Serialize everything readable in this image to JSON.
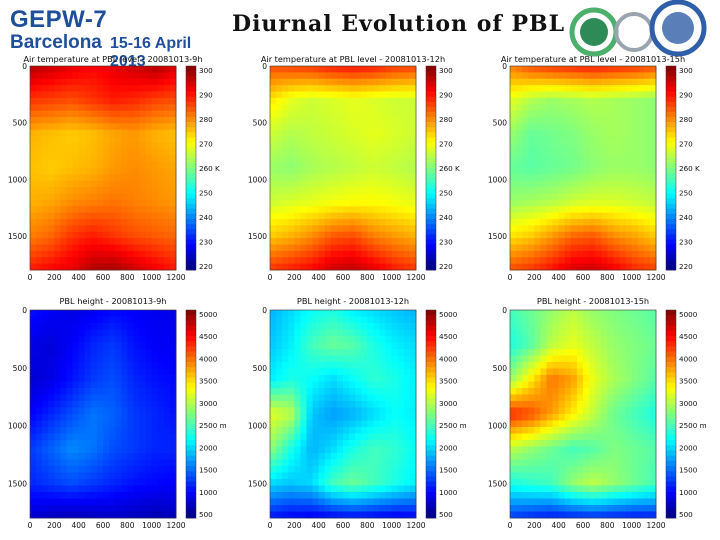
{
  "header": {
    "logo_line1": "GEPW-7",
    "logo_line2": "Barcelona",
    "logo_line3": "15-16 April 2013",
    "slide_title": "Diurnal Evolution of PBL"
  },
  "colors": {
    "logo_blue": "#1f4f9a",
    "ring_green": "#4caf6a",
    "ring_blue": "#2f5fa8",
    "ring_gray": "#9aa4b0"
  },
  "chart_data": [
    {
      "type": "heatmap",
      "title": "Air temperature at PBL level - 20081013-9h",
      "x_ticks": [
        "0",
        "200",
        "400",
        "600",
        "800",
        "1000",
        "1200"
      ],
      "y_ticks": [
        "0",
        "500",
        "1000",
        "1500"
      ],
      "xlim": [
        0,
        1200
      ],
      "ylim": [
        0,
        1800
      ],
      "colorbar_ticks": [
        "300",
        "290",
        "280",
        "270",
        "260 K",
        "250",
        "240",
        "230",
        "220"
      ],
      "colorbar_range": [
        220,
        300
      ],
      "colormap": "jet",
      "field": [
        [
          296,
          294,
          292,
          290,
          292,
          294,
          296,
          293
        ],
        [
          286,
          285,
          284,
          286,
          288,
          287,
          285,
          284
        ],
        [
          276,
          275,
          274,
          275,
          277,
          278,
          276,
          275
        ],
        [
          275,
          274,
          275,
          276,
          278,
          279,
          278,
          277
        ],
        [
          276,
          277,
          279,
          280,
          281,
          280,
          279,
          278
        ],
        [
          280,
          282,
          286,
          288,
          286,
          284,
          283,
          282
        ],
        [
          288,
          290,
          292,
          296,
          297,
          294,
          291,
          288
        ]
      ]
    },
    {
      "type": "heatmap",
      "title": "Air temperature at PBL level - 20081013-12h",
      "x_ticks": [
        "0",
        "200",
        "400",
        "600",
        "800",
        "1000",
        "1200"
      ],
      "y_ticks": [
        "0",
        "500",
        "1000",
        "1500"
      ],
      "xlim": [
        0,
        1200
      ],
      "ylim": [
        0,
        1800
      ],
      "colorbar_ticks": [
        "300",
        "290",
        "280",
        "270",
        "260 K",
        "250",
        "240",
        "230",
        "220"
      ],
      "colorbar_range": [
        220,
        300
      ],
      "colormap": "jet",
      "field": [
        [
          284,
          285,
          286,
          288,
          289,
          288,
          286,
          285
        ],
        [
          272,
          268,
          266,
          267,
          268,
          267,
          266,
          266
        ],
        [
          266,
          264,
          265,
          266,
          267,
          268,
          267,
          266
        ],
        [
          262,
          261,
          263,
          264,
          265,
          266,
          265,
          264
        ],
        [
          266,
          267,
          268,
          269,
          270,
          270,
          269,
          268
        ],
        [
          274,
          276,
          279,
          283,
          284,
          280,
          278,
          276
        ],
        [
          286,
          288,
          290,
          294,
          295,
          292,
          288,
          286
        ]
      ]
    },
    {
      "type": "heatmap",
      "title": "Air temperature at PBL level - 20081013-15h",
      "x_ticks": [
        "0",
        "200",
        "400",
        "600",
        "800",
        "1000",
        "1200"
      ],
      "y_ticks": [
        "0",
        "500",
        "1000",
        "1500"
      ],
      "xlim": [
        0,
        1200
      ],
      "ylim": [
        0,
        1800
      ],
      "colorbar_ticks": [
        "300",
        "290",
        "280",
        "270",
        "260 K",
        "250",
        "240",
        "230",
        "220"
      ],
      "colorbar_range": [
        220,
        300
      ],
      "colormap": "jet",
      "field": [
        [
          280,
          284,
          286,
          287,
          288,
          287,
          286,
          284
        ],
        [
          268,
          264,
          262,
          263,
          264,
          263,
          262,
          261
        ],
        [
          262,
          258,
          259,
          260,
          262,
          263,
          262,
          261
        ],
        [
          258,
          257,
          258,
          259,
          261,
          262,
          262,
          261
        ],
        [
          262,
          263,
          264,
          266,
          267,
          267,
          266,
          265
        ],
        [
          272,
          274,
          278,
          282,
          283,
          279,
          277,
          274
        ],
        [
          284,
          286,
          289,
          293,
          294,
          291,
          287,
          285
        ]
      ]
    },
    {
      "type": "heatmap",
      "title": "PBL height - 20081013-9h",
      "x_ticks": [
        "0",
        "200",
        "400",
        "600",
        "800",
        "1000",
        "1200"
      ],
      "y_ticks": [
        "0",
        "500",
        "1000",
        "1500"
      ],
      "xlim": [
        0,
        1200
      ],
      "ylim": [
        0,
        1800
      ],
      "colorbar_ticks": [
        "5000",
        "4500",
        "4000",
        "3500",
        "3000",
        "2500 m",
        "2000",
        "1500",
        "1000",
        "500"
      ],
      "colorbar_range": [
        0,
        5000
      ],
      "colormap": "jet",
      "field": [
        [
          700,
          600,
          500,
          550,
          650,
          600,
          550,
          500
        ],
        [
          500,
          450,
          600,
          800,
          900,
          700,
          600,
          550
        ],
        [
          400,
          500,
          700,
          900,
          1000,
          800,
          700,
          650
        ],
        [
          600,
          800,
          1000,
          1200,
          1100,
          900,
          800,
          700
        ],
        [
          900,
          1100,
          1300,
          1200,
          1000,
          900,
          800,
          800
        ],
        [
          800,
          900,
          1000,
          900,
          800,
          700,
          650,
          600
        ],
        [
          400,
          300,
          250,
          300,
          350,
          300,
          250,
          300
        ]
      ]
    },
    {
      "type": "heatmap",
      "title": "PBL height - 20081013-12h",
      "x_ticks": [
        "0",
        "200",
        "400",
        "600",
        "800",
        "1000",
        "1200"
      ],
      "y_ticks": [
        "0",
        "500",
        "1000",
        "1500"
      ],
      "xlim": [
        0,
        1200
      ],
      "ylim": [
        0,
        1800
      ],
      "colorbar_ticks": [
        "5000",
        "4500",
        "4000",
        "3500",
        "3000",
        "2500 m",
        "2000",
        "1500",
        "1000",
        "500"
      ],
      "colorbar_range": [
        0,
        5000
      ],
      "colormap": "jet",
      "field": [
        [
          1500,
          1700,
          1900,
          2000,
          1800,
          1700,
          1600,
          1500
        ],
        [
          1600,
          1800,
          2200,
          2400,
          2300,
          2000,
          1800,
          1700
        ],
        [
          1800,
          2000,
          1900,
          1700,
          1900,
          2100,
          2000,
          1800
        ],
        [
          3000,
          2800,
          1600,
          1400,
          1500,
          1700,
          1900,
          1800
        ],
        [
          2600,
          2000,
          1500,
          1700,
          2000,
          2200,
          2100,
          1900
        ],
        [
          1700,
          1600,
          1700,
          2200,
          2400,
          2200,
          2000,
          1800
        ],
        [
          700,
          600,
          550,
          600,
          650,
          600,
          550,
          600
        ]
      ]
    },
    {
      "type": "heatmap",
      "title": "PBL height - 20081013-15h",
      "x_ticks": [
        "0",
        "200",
        "400",
        "600",
        "800",
        "1000",
        "1200"
      ],
      "y_ticks": [
        "0",
        "500",
        "1000",
        "1500"
      ],
      "xlim": [
        0,
        1200
      ],
      "ylim": [
        0,
        1800
      ],
      "colorbar_ticks": [
        "5000",
        "4500",
        "4000",
        "3500",
        "3000",
        "2500 m",
        "2000",
        "1500",
        "1000",
        "500"
      ],
      "colorbar_range": [
        0,
        5000
      ],
      "colormap": "jet",
      "field": [
        [
          2200,
          2400,
          2600,
          2800,
          2600,
          2500,
          2400,
          2300
        ],
        [
          2000,
          2300,
          2800,
          3000,
          2800,
          2600,
          2500,
          2400
        ],
        [
          2600,
          3200,
          3800,
          3600,
          3000,
          2700,
          2500,
          2300
        ],
        [
          4200,
          4000,
          3600,
          3200,
          2800,
          2400,
          2200,
          2000
        ],
        [
          2800,
          2600,
          2400,
          2200,
          2300,
          2500,
          2400,
          2300
        ],
        [
          2000,
          2100,
          2200,
          2600,
          2800,
          2600,
          2400,
          2200
        ],
        [
          900,
          800,
          700,
          750,
          800,
          750,
          700,
          750
        ]
      ]
    }
  ]
}
